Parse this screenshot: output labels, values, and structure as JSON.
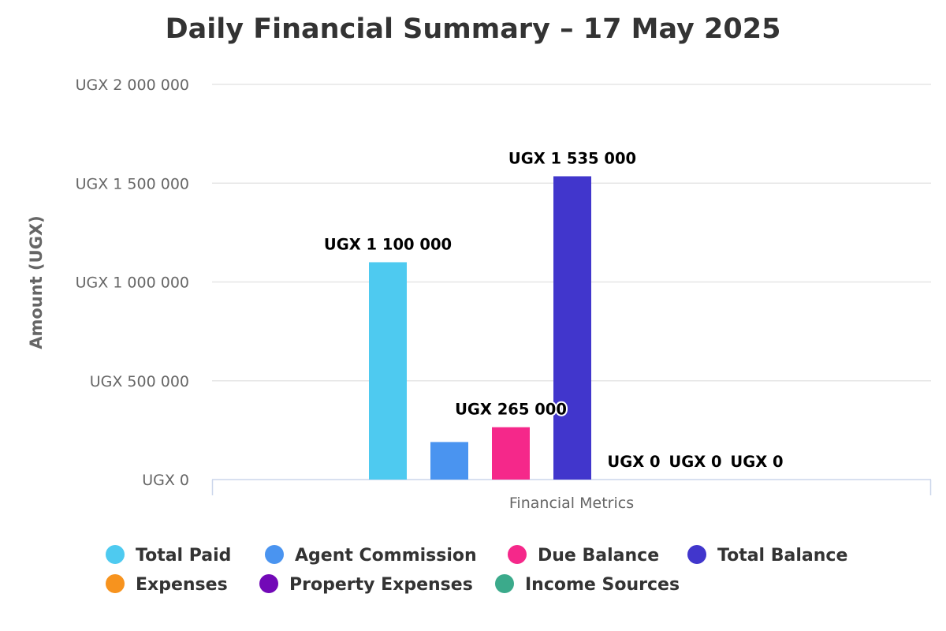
{
  "chart_data": {
    "type": "bar",
    "title": "Daily Financial Summary – 17 May 2025",
    "xlabel": "",
    "ylabel": "Amount (UGX)",
    "categories": [
      "Financial Metrics"
    ],
    "ylim": [
      0,
      2000000
    ],
    "ytick_values": [
      0,
      500000,
      1000000,
      1500000,
      2000000
    ],
    "ytick_labels": [
      "UGX 0",
      "UGX 500 000",
      "UGX 1 000 000",
      "UGX 1 500 000",
      "UGX 2 000 000"
    ],
    "grid": true,
    "legend_position": "bottom",
    "series": [
      {
        "name": "Total Paid",
        "values": [
          1100000
        ],
        "color": "#4ECAF0",
        "label": "UGX 1 100 000"
      },
      {
        "name": "Agent Commission",
        "values": [
          190000
        ],
        "color": "#4A94F0",
        "label": ""
      },
      {
        "name": "Due Balance",
        "values": [
          265000
        ],
        "color": "#F5288A",
        "label": "UGX 265 000"
      },
      {
        "name": "Total Balance",
        "values": [
          1535000
        ],
        "color": "#4136CC",
        "label": "UGX 1 535 000"
      },
      {
        "name": "Expenses",
        "values": [
          0
        ],
        "color": "#F7931E",
        "label": "UGX 0"
      },
      {
        "name": "Property Expenses",
        "values": [
          0
        ],
        "color": "#7209B7",
        "label": "UGX 0"
      },
      {
        "name": "Income Sources",
        "values": [
          0
        ],
        "color": "#3BAA8B",
        "label": "UGX 0"
      }
    ]
  }
}
